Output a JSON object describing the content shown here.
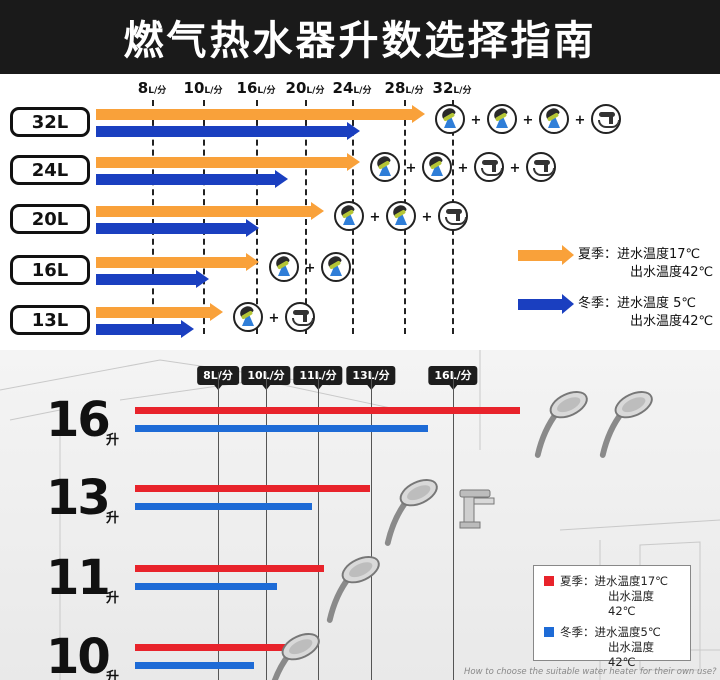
{
  "title": "燃气热水器升数选择指南",
  "top": {
    "flow_unit": "L/分",
    "flow_rates": [
      "8",
      "10",
      "16",
      "20",
      "24",
      "28",
      "32"
    ],
    "rows": [
      {
        "capacity": "32L",
        "summer_len": 0.88,
        "winter_len": 0.7,
        "icons": [
          "shower",
          "shower",
          "shower",
          "faucet"
        ]
      },
      {
        "capacity": "24L",
        "summer_len": 0.7,
        "winter_len": 0.5,
        "icons": [
          "shower",
          "shower",
          "faucet",
          "faucet"
        ]
      },
      {
        "capacity": "20L",
        "summer_len": 0.6,
        "winter_len": 0.42,
        "icons": [
          "shower",
          "shower",
          "faucet"
        ]
      },
      {
        "capacity": "16L",
        "summer_len": 0.42,
        "winter_len": 0.28,
        "icons": [
          "shower",
          "shower"
        ]
      },
      {
        "capacity": "13L",
        "summer_len": 0.32,
        "winter_len": 0.24,
        "icons": [
          "shower",
          "faucet"
        ]
      }
    ],
    "legend": {
      "summer_season": "夏季：",
      "summer_in": "进水温度17℃",
      "summer_out": "出水温度42℃",
      "winter_season": "冬季：",
      "winter_in": "进水温度 5℃",
      "winter_out": "出水温度42℃",
      "summer_color": "#f9a13a",
      "winter_color": "#1a3fc0"
    }
  },
  "bottom": {
    "flow_tags": [
      "8L/分",
      "10L/分",
      "11L/分",
      "13L/分",
      "16L/分"
    ],
    "unit": "升",
    "rows": [
      {
        "number": "16",
        "red_fraction": 1.0,
        "blue_fraction": 0.76
      },
      {
        "number": "13",
        "red_fraction": 0.61,
        "blue_fraction": 0.46
      },
      {
        "number": "11",
        "red_fraction": 0.49,
        "blue_fraction": 0.37
      },
      {
        "number": "10",
        "red_fraction": 0.42,
        "blue_fraction": 0.31
      }
    ],
    "legend": {
      "summer_season": "夏季：",
      "summer_in": "进水温度17℃",
      "summer_out": "出水温度42℃",
      "winter_season": "冬季：",
      "winter_in": "进水温度5℃",
      "winter_out": "出水温度42℃",
      "summer_color": "#e8232b",
      "winter_color": "#1e6bd6"
    },
    "footer": "How to choose the suitable water heater for their own use?"
  }
}
